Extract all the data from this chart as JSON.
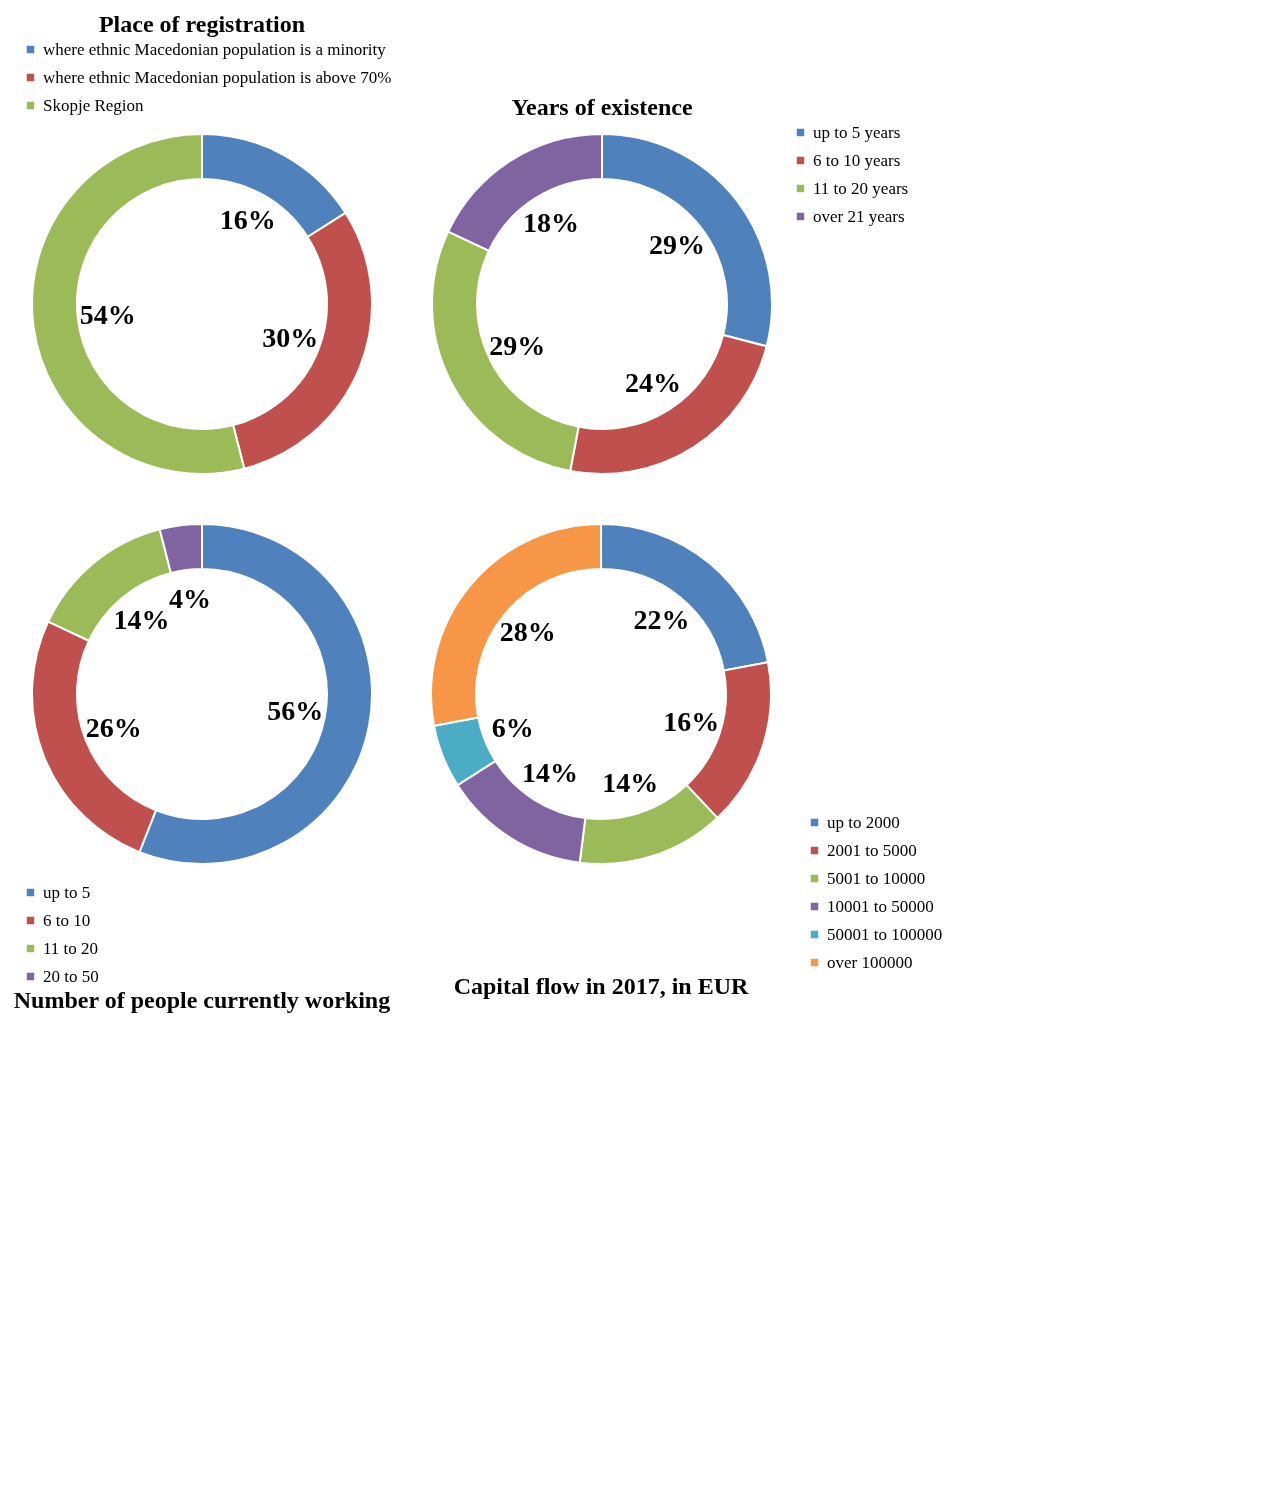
{
  "chart_data": [
    {
      "type": "donut",
      "title": "Place of registration",
      "categories": [
        "where ethnic Macedonian population is a minority",
        "where ethnic Macedonian population is above 70%",
        "Skopje Region"
      ],
      "values": [
        16,
        30,
        54
      ],
      "value_labels": [
        "16%",
        "30%",
        "54%"
      ],
      "colors": [
        "#4f81bd",
        "#c0504d",
        "#9bbb59"
      ],
      "legend": "top left"
    },
    {
      "type": "donut",
      "title": "Years of existence",
      "categories": [
        "up to 5 years",
        "6 to 10 years",
        "11 to 20 years",
        "over 21 years"
      ],
      "values": [
        29,
        24,
        29,
        18
      ],
      "value_labels": [
        "29%",
        "24%",
        "29%",
        "18%"
      ],
      "colors": [
        "#4f81bd",
        "#c0504d",
        "#9bbb59",
        "#8064a2"
      ],
      "legend": "top right"
    },
    {
      "type": "donut",
      "title": "Number of people currently working",
      "categories": [
        "up to 5",
        "6 to 10",
        "11 to 20",
        "20 to 50"
      ],
      "values": [
        56,
        26,
        14,
        4
      ],
      "value_labels": [
        "56%",
        "26%",
        "14%",
        "4%"
      ],
      "colors": [
        "#4f81bd",
        "#c0504d",
        "#9bbb59",
        "#8064a2"
      ],
      "legend": "bottom left"
    },
    {
      "type": "donut",
      "title": "Capital flow in 2017, in EUR",
      "categories": [
        "up to 2000",
        "2001 to 5000",
        "5001 to 10000",
        "10001 to 50000",
        "50001 to 100000",
        "over 100000"
      ],
      "values": [
        22,
        16,
        14,
        14,
        6,
        28
      ],
      "value_labels": [
        "22%",
        "16%",
        "14%",
        "14%",
        "6%",
        "28%"
      ],
      "colors": [
        "#4f81bd",
        "#c0504d",
        "#9bbb59",
        "#8064a2",
        "#4bacc6",
        "#f79646"
      ],
      "legend": "bottom right"
    }
  ]
}
